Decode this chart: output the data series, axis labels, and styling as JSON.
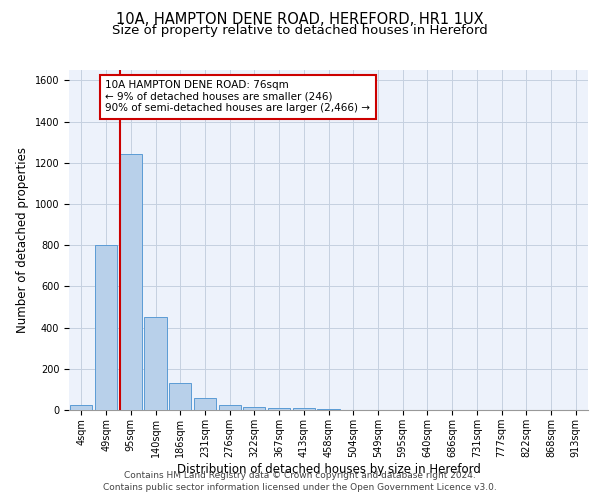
{
  "title1": "10A, HAMPTON DENE ROAD, HEREFORD, HR1 1UX",
  "title2": "Size of property relative to detached houses in Hereford",
  "xlabel": "Distribution of detached houses by size in Hereford",
  "ylabel": "Number of detached properties",
  "bar_labels": [
    "4sqm",
    "49sqm",
    "95sqm",
    "140sqm",
    "186sqm",
    "231sqm",
    "276sqm",
    "322sqm",
    "367sqm",
    "413sqm",
    "458sqm",
    "504sqm",
    "549sqm",
    "595sqm",
    "640sqm",
    "686sqm",
    "731sqm",
    "777sqm",
    "822sqm",
    "868sqm",
    "913sqm"
  ],
  "bar_values": [
    25,
    800,
    1240,
    450,
    130,
    58,
    25,
    15,
    10,
    10,
    5,
    0,
    0,
    0,
    0,
    0,
    0,
    0,
    0,
    0,
    0
  ],
  "bar_color": "#b8d0ea",
  "bar_edge_color": "#5b9bd5",
  "red_line_color": "#cc0000",
  "annotation_line1": "10A HAMPTON DENE ROAD: 76sqm",
  "annotation_line2": "← 9% of detached houses are smaller (246)",
  "annotation_line3": "90% of semi-detached houses are larger (2,466) →",
  "annotation_box_color": "#ffffff",
  "annotation_box_edge": "#cc0000",
  "footer1": "Contains HM Land Registry data © Crown copyright and database right 2024.",
  "footer2": "Contains public sector information licensed under the Open Government Licence v3.0.",
  "ylim": [
    0,
    1650
  ],
  "background_color": "#edf2fb",
  "grid_color": "#c5d0e0",
  "title1_fontsize": 10.5,
  "title2_fontsize": 9.5,
  "axis_label_fontsize": 8.5,
  "tick_fontsize": 7,
  "annotation_fontsize": 7.5,
  "footer_fontsize": 6.5,
  "red_line_bar_index": 1.58
}
